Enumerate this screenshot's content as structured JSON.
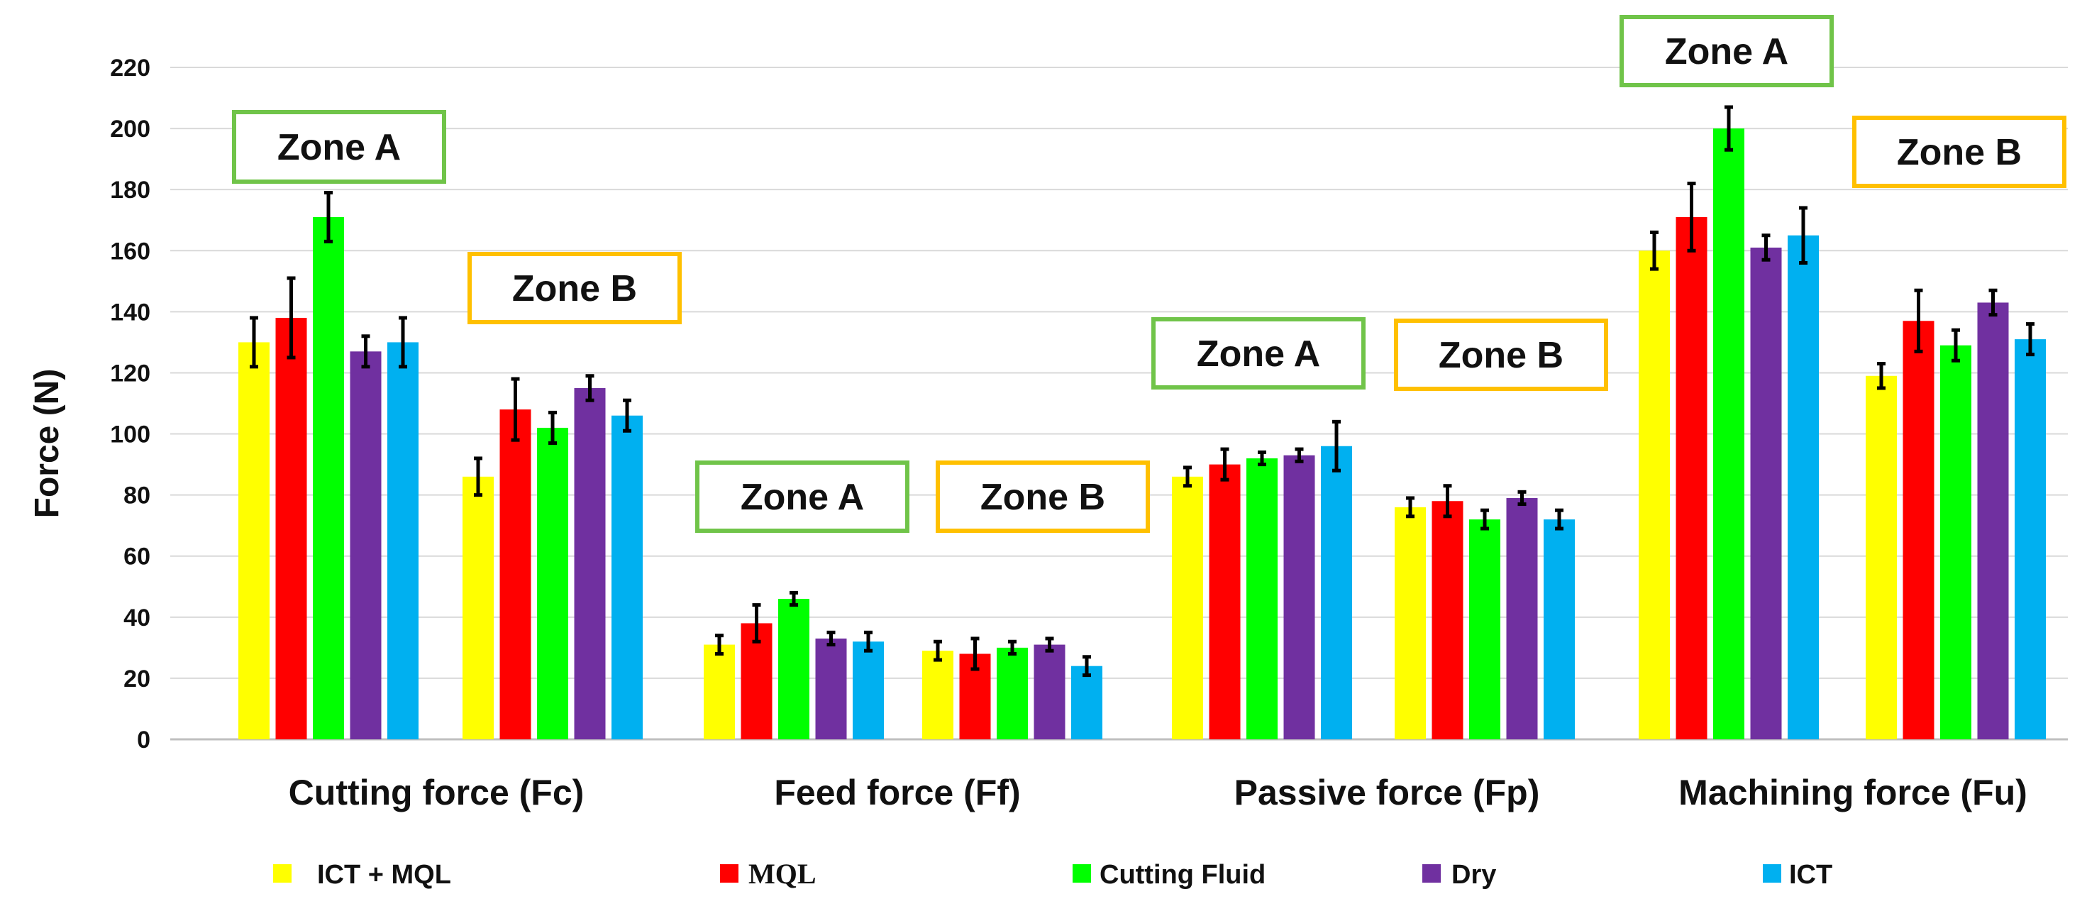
{
  "chart_data": {
    "type": "bar",
    "ylabel": "Force (N)",
    "ylim": [
      0,
      220
    ],
    "yticks": [
      0,
      20,
      40,
      60,
      80,
      100,
      120,
      140,
      160,
      180,
      200,
      220
    ],
    "grid": true,
    "legend_position": "bottom",
    "groups": [
      {
        "label": "Cutting force (Fc)",
        "zones": [
          {
            "name": "Zone A",
            "values": [
              130,
              138,
              171,
              127,
              130
            ],
            "errors": [
              8,
              13,
              8,
              5,
              8
            ]
          },
          {
            "name": "Zone B",
            "values": [
              86,
              108,
              102,
              115,
              106
            ],
            "errors": [
              6,
              10,
              5,
              4,
              5
            ]
          }
        ]
      },
      {
        "label": "Feed force (Ff)",
        "zones": [
          {
            "name": "Zone A",
            "values": [
              31,
              38,
              46,
              33,
              32
            ],
            "errors": [
              3,
              6,
              2,
              2,
              3
            ]
          },
          {
            "name": "Zone B",
            "values": [
              29,
              28,
              30,
              31,
              24
            ],
            "errors": [
              3,
              5,
              2,
              2,
              3
            ]
          }
        ]
      },
      {
        "label": "Passive force (Fp)",
        "zones": [
          {
            "name": "Zone A",
            "values": [
              86,
              90,
              92,
              93,
              96
            ],
            "errors": [
              3,
              5,
              2,
              2,
              8
            ]
          },
          {
            "name": "Zone B",
            "values": [
              76,
              78,
              72,
              79,
              72
            ],
            "errors": [
              3,
              5,
              3,
              2,
              3
            ]
          }
        ]
      },
      {
        "label": "Machining force (Fu)",
        "zones": [
          {
            "name": "Zone A",
            "values": [
              160,
              171,
              200,
              161,
              165
            ],
            "errors": [
              6,
              11,
              7,
              4,
              9
            ]
          },
          {
            "name": "Zone B",
            "values": [
              119,
              137,
              129,
              143,
              131
            ],
            "errors": [
              4,
              10,
              5,
              4,
              5
            ]
          }
        ]
      }
    ],
    "series": [
      {
        "name": "ICT + MQL",
        "color": "#ffff00"
      },
      {
        "name": "MQL",
        "color": "#ff0000"
      },
      {
        "name": "Cutting Fluid",
        "color": "#00ff00"
      },
      {
        "name": "Dry",
        "color": "#7030a0"
      },
      {
        "name": "ICT",
        "color": "#00b0f0"
      }
    ],
    "zone_box_colors": {
      "Zone A": "#70c449",
      "Zone B": "#ffc000"
    }
  }
}
